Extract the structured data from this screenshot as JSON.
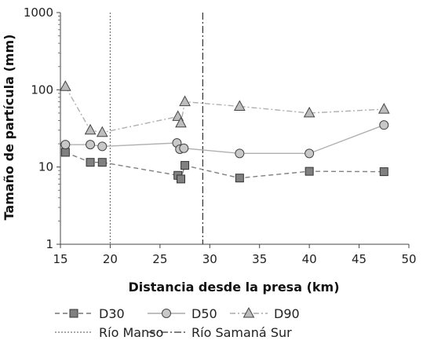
{
  "chart_data": {
    "type": "line",
    "xlabel": "Distancia desde la presa (km)",
    "ylabel": "Tamaño de partícula (mm)",
    "xlim": [
      15,
      50
    ],
    "ylim": [
      1,
      1000
    ],
    "yscale": "log",
    "grid": false,
    "x_ticks": [
      "15",
      "20",
      "25",
      "30",
      "35",
      "40",
      "45",
      "50"
    ],
    "y_ticks": [
      "1",
      "10",
      "100",
      "1000"
    ],
    "legend_placement": "bottom",
    "series": [
      {
        "name": "D30",
        "marker": "square",
        "line": "dashed",
        "color": "#808080",
        "x": [
          15.5,
          18.0,
          19.2,
          26.8,
          27.1,
          27.5,
          33.0,
          40.0,
          47.5
        ],
        "values": [
          15.5,
          11.5,
          11.5,
          7.8,
          7.0,
          10.5,
          7.2,
          8.8,
          8.7
        ]
      },
      {
        "name": "D50",
        "marker": "circle",
        "line": "solid",
        "color": "#b0b0b0",
        "x": [
          15.5,
          18.0,
          19.2,
          26.7,
          27.0,
          27.4,
          33.0,
          40.0,
          47.5
        ],
        "values": [
          19.5,
          19.5,
          18.5,
          20.5,
          17.0,
          17.5,
          15.0,
          15.0,
          35.0
        ]
      },
      {
        "name": "D90",
        "marker": "triangle",
        "line": "dashdot",
        "color": "#b0b0b0",
        "x": [
          15.5,
          18.0,
          19.2,
          26.8,
          27.1,
          27.5,
          33.0,
          40.0,
          47.5
        ],
        "values": [
          110,
          30,
          28,
          45,
          37,
          70,
          61,
          50,
          56
        ]
      }
    ],
    "reference_lines": [
      {
        "name": "Río Manso",
        "x": 20,
        "style": "dotted"
      },
      {
        "name": "Río Samaná Sur",
        "x": 29.3,
        "style": "dashdot"
      }
    ]
  }
}
